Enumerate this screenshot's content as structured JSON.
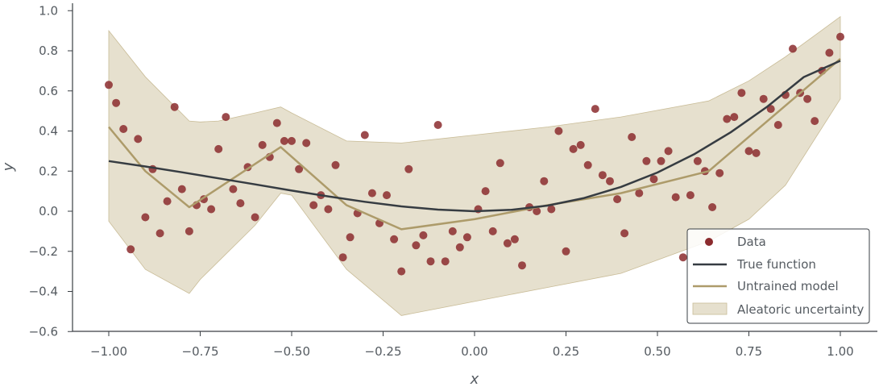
{
  "chart_data": {
    "type": "scatter",
    "xlabel": "x",
    "ylabel": "y",
    "xlim": [
      -1.1,
      1.1
    ],
    "ylim": [
      -0.6,
      1.0
    ],
    "xticks": [
      -1.0,
      -0.75,
      -0.5,
      -0.25,
      0.0,
      0.25,
      0.5,
      0.75,
      1.0
    ],
    "xtick_labels": [
      "−1.00",
      "−0.75",
      "−0.50",
      "−0.25",
      "0.00",
      "0.25",
      "0.50",
      "0.75",
      "1.00"
    ],
    "yticks": [
      -0.6,
      -0.4,
      -0.2,
      0.0,
      0.2,
      0.4,
      0.6,
      0.8,
      1.0
    ],
    "ytick_labels": [
      "−0.6",
      "−0.4",
      "−0.2",
      "0.0",
      "0.2",
      "0.4",
      "0.6",
      "0.8",
      "1.0"
    ],
    "grid": false,
    "legend_position": "bottom-right",
    "colors": {
      "data": "#8b2b2e",
      "true_function": "#363c42",
      "untrained_model": "#ad9b6a",
      "uncertainty_fill": "#d6cbad"
    },
    "legend": [
      {
        "label": "Data",
        "kind": "marker"
      },
      {
        "label": "True function",
        "kind": "line-true"
      },
      {
        "label": "Untrained model",
        "kind": "line-model"
      },
      {
        "label": "Aleatoric uncertainty",
        "kind": "patch"
      }
    ],
    "data_points": [
      [
        -1.0,
        0.63
      ],
      [
        -0.98,
        0.54
      ],
      [
        -0.96,
        0.41
      ],
      [
        -0.94,
        -0.19
      ],
      [
        -0.92,
        0.36
      ],
      [
        -0.9,
        -0.03
      ],
      [
        -0.88,
        0.21
      ],
      [
        -0.86,
        -0.11
      ],
      [
        -0.84,
        0.05
      ],
      [
        -0.82,
        0.52
      ],
      [
        -0.8,
        0.11
      ],
      [
        -0.78,
        -0.1
      ],
      [
        -0.76,
        0.03
      ],
      [
        -0.74,
        0.06
      ],
      [
        -0.72,
        0.01
      ],
      [
        -0.7,
        0.31
      ],
      [
        -0.68,
        0.47
      ],
      [
        -0.66,
        0.11
      ],
      [
        -0.64,
        0.04
      ],
      [
        -0.62,
        0.22
      ],
      [
        -0.6,
        -0.03
      ],
      [
        -0.58,
        0.33
      ],
      [
        -0.56,
        0.27
      ],
      [
        -0.54,
        0.44
      ],
      [
        -0.52,
        0.35
      ],
      [
        -0.5,
        0.35
      ],
      [
        -0.48,
        0.21
      ],
      [
        -0.46,
        0.34
      ],
      [
        -0.44,
        0.03
      ],
      [
        -0.42,
        0.08
      ],
      [
        -0.4,
        0.01
      ],
      [
        -0.38,
        0.23
      ],
      [
        -0.36,
        -0.23
      ],
      [
        -0.34,
        -0.13
      ],
      [
        -0.32,
        -0.01
      ],
      [
        -0.3,
        0.38
      ],
      [
        -0.28,
        0.09
      ],
      [
        -0.26,
        -0.06
      ],
      [
        -0.24,
        0.08
      ],
      [
        -0.22,
        -0.14
      ],
      [
        -0.2,
        -0.3
      ],
      [
        -0.18,
        0.21
      ],
      [
        -0.16,
        -0.17
      ],
      [
        -0.14,
        -0.12
      ],
      [
        -0.12,
        -0.25
      ],
      [
        -0.1,
        0.43
      ],
      [
        -0.08,
        -0.25
      ],
      [
        -0.06,
        -0.1
      ],
      [
        -0.04,
        -0.18
      ],
      [
        -0.02,
        -0.13
      ],
      [
        0.01,
        0.01
      ],
      [
        0.03,
        0.1
      ],
      [
        0.05,
        -0.1
      ],
      [
        0.07,
        0.24
      ],
      [
        0.09,
        -0.16
      ],
      [
        0.11,
        -0.14
      ],
      [
        0.13,
        -0.27
      ],
      [
        0.15,
        0.02
      ],
      [
        0.17,
        0.0
      ],
      [
        0.19,
        0.15
      ],
      [
        0.21,
        0.01
      ],
      [
        0.23,
        0.4
      ],
      [
        0.25,
        -0.2
      ],
      [
        0.27,
        0.31
      ],
      [
        0.29,
        0.33
      ],
      [
        0.31,
        0.23
      ],
      [
        0.33,
        0.51
      ],
      [
        0.35,
        0.18
      ],
      [
        0.37,
        0.15
      ],
      [
        0.39,
        0.06
      ],
      [
        0.41,
        -0.11
      ],
      [
        0.43,
        0.37
      ],
      [
        0.45,
        0.09
      ],
      [
        0.47,
        0.25
      ],
      [
        0.49,
        0.16
      ],
      [
        0.51,
        0.25
      ],
      [
        0.53,
        0.3
      ],
      [
        0.55,
        0.07
      ],
      [
        0.57,
        -0.23
      ],
      [
        0.59,
        0.08
      ],
      [
        0.61,
        0.25
      ],
      [
        0.63,
        0.2
      ],
      [
        0.65,
        0.02
      ],
      [
        0.67,
        0.19
      ],
      [
        0.69,
        0.46
      ],
      [
        0.71,
        0.47
      ],
      [
        0.73,
        0.59
      ],
      [
        0.75,
        0.3
      ],
      [
        0.77,
        0.29
      ],
      [
        0.79,
        0.56
      ],
      [
        0.81,
        0.51
      ],
      [
        0.83,
        0.43
      ],
      [
        0.85,
        0.58
      ],
      [
        0.87,
        0.81
      ],
      [
        0.89,
        0.59
      ],
      [
        0.91,
        0.56
      ],
      [
        0.93,
        0.45
      ],
      [
        0.95,
        0.7
      ],
      [
        0.97,
        0.79
      ],
      [
        1.0,
        0.87
      ]
    ],
    "true_function": {
      "x": [
        -1.0,
        -0.9,
        -0.8,
        -0.7,
        -0.6,
        -0.5,
        -0.4,
        -0.3,
        -0.2,
        -0.1,
        0.0,
        0.1,
        0.2,
        0.3,
        0.4,
        0.5,
        0.6,
        0.7,
        0.8,
        0.9,
        1.0
      ],
      "y": [
        0.25,
        0.223,
        0.194,
        0.164,
        0.134,
        0.103,
        0.074,
        0.047,
        0.024,
        0.008,
        0.0,
        0.007,
        0.028,
        0.066,
        0.121,
        0.193,
        0.284,
        0.393,
        0.521,
        0.669,
        0.75
      ]
    },
    "untrained_model": {
      "x": [
        -1.0,
        -0.9,
        -0.78,
        -0.53,
        -0.35,
        -0.2,
        0.0,
        0.2,
        0.4,
        0.64,
        1.0
      ],
      "y": [
        0.42,
        0.2,
        0.02,
        0.32,
        0.03,
        -0.09,
        -0.04,
        0.03,
        0.09,
        0.2,
        0.76
      ]
    },
    "uncertainty_band": {
      "x": [
        -1.0,
        -0.9,
        -0.78,
        -0.75,
        -0.7,
        -0.6,
        -0.53,
        -0.5,
        -0.35,
        -0.2,
        0.0,
        0.2,
        0.4,
        0.64,
        0.75,
        0.85,
        1.0
      ],
      "upper": [
        0.9,
        0.67,
        0.45,
        0.445,
        0.45,
        0.49,
        0.52,
        0.49,
        0.35,
        0.34,
        0.38,
        0.42,
        0.47,
        0.55,
        0.65,
        0.77,
        0.97
      ],
      "lower": [
        -0.05,
        -0.29,
        -0.41,
        -0.34,
        -0.25,
        -0.07,
        0.09,
        0.08,
        -0.29,
        -0.52,
        -0.45,
        -0.38,
        -0.31,
        -0.15,
        -0.04,
        0.13,
        0.56
      ]
    }
  }
}
